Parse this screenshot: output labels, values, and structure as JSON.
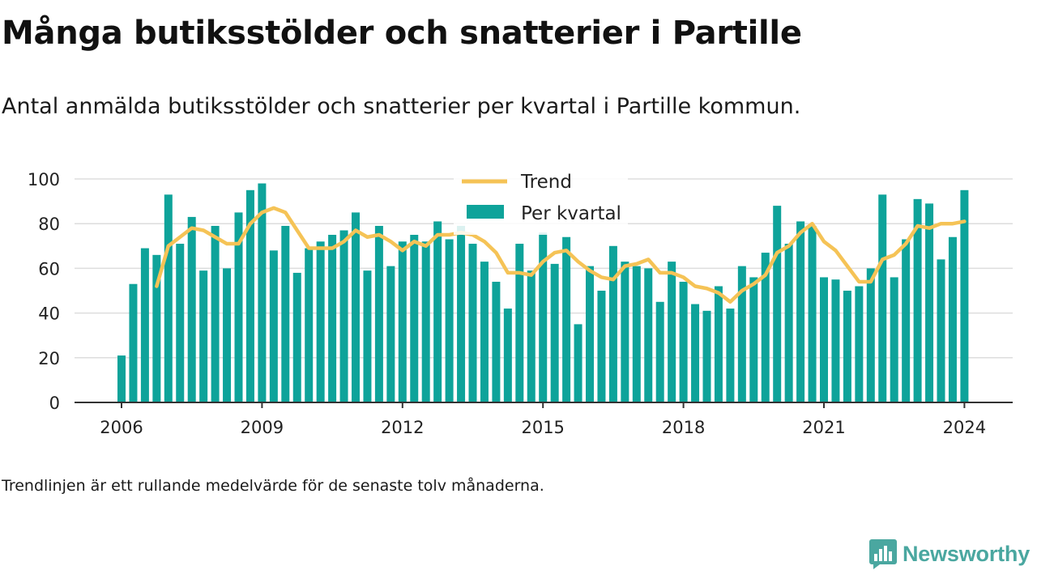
{
  "title": "Många butiksstölder och snatterier i Partille",
  "subtitle": "Antal anmälda butiksstölder och snatterier per kvartal i Partille kommun.",
  "note": "Trendlinjen är ett rullande medelvärde för de senaste tolv månaderna.",
  "brand": {
    "name": "Newsworthy",
    "icon": "newsworthy-logo-icon"
  },
  "colors": {
    "bar": "#0ea39a",
    "trend": "#f5c356",
    "grid": "#dddddd",
    "axis": "#333333",
    "text": "#222222"
  },
  "chart_data": {
    "type": "bar",
    "title": "Många butiksstölder och snatterier i Partille",
    "subtitle": "Antal anmälda butiksstölder och snatterier per kvartal i Partille kommun.",
    "xlabel": "",
    "ylabel": "",
    "ylim": [
      0,
      100
    ],
    "yticks": [
      0,
      20,
      40,
      60,
      80,
      100
    ],
    "xticks": [
      "2006",
      "2009",
      "2012",
      "2015",
      "2018",
      "2021",
      "2024"
    ],
    "grid": true,
    "legend_position": "top-center",
    "categories": [
      "2006 Q1",
      "2006 Q2",
      "2006 Q3",
      "2006 Q4",
      "2007 Q1",
      "2007 Q2",
      "2007 Q3",
      "2007 Q4",
      "2008 Q1",
      "2008 Q2",
      "2008 Q3",
      "2008 Q4",
      "2009 Q1",
      "2009 Q2",
      "2009 Q3",
      "2009 Q4",
      "2010 Q1",
      "2010 Q2",
      "2010 Q3",
      "2010 Q4",
      "2011 Q1",
      "2011 Q2",
      "2011 Q3",
      "2011 Q4",
      "2012 Q1",
      "2012 Q2",
      "2012 Q3",
      "2012 Q4",
      "2013 Q1",
      "2013 Q2",
      "2013 Q3",
      "2013 Q4",
      "2014 Q1",
      "2014 Q2",
      "2014 Q3",
      "2014 Q4",
      "2015 Q1",
      "2015 Q2",
      "2015 Q3",
      "2015 Q4",
      "2016 Q1",
      "2016 Q2",
      "2016 Q3",
      "2016 Q4",
      "2017 Q1",
      "2017 Q2",
      "2017 Q3",
      "2017 Q4",
      "2018 Q1",
      "2018 Q2",
      "2018 Q3",
      "2018 Q4",
      "2019 Q1",
      "2019 Q2",
      "2019 Q3",
      "2019 Q4",
      "2020 Q1",
      "2020 Q2",
      "2020 Q3",
      "2020 Q4",
      "2021 Q1",
      "2021 Q2",
      "2021 Q3",
      "2021 Q4",
      "2022 Q1",
      "2022 Q2",
      "2022 Q3",
      "2022 Q4",
      "2023 Q1",
      "2023 Q2",
      "2023 Q3",
      "2023 Q4",
      "2024 Q1"
    ],
    "series": [
      {
        "name": "Per kvartal",
        "type": "bar",
        "values": [
          21,
          53,
          69,
          66,
          93,
          71,
          83,
          59,
          79,
          60,
          85,
          95,
          98,
          68,
          79,
          58,
          69,
          72,
          75,
          77,
          85,
          59,
          79,
          61,
          72,
          75,
          72,
          81,
          73,
          79,
          71,
          63,
          54,
          42,
          71,
          59,
          76,
          62,
          74,
          35,
          61,
          50,
          70,
          63,
          61,
          60,
          45,
          63,
          54,
          44,
          41,
          52,
          42,
          61,
          56,
          67,
          88,
          71,
          81,
          79,
          56,
          55,
          50,
          52,
          60,
          93,
          56,
          73,
          91,
          89,
          64,
          74,
          95
        ]
      },
      {
        "name": "Trend",
        "type": "line",
        "values": [
          null,
          null,
          null,
          52,
          70,
          74,
          78,
          77,
          74,
          71,
          71,
          80,
          85,
          87,
          85,
          77,
          69,
          69,
          69,
          72,
          77,
          74,
          75,
          72,
          68,
          72,
          70,
          75,
          75,
          76,
          75,
          72,
          67,
          58,
          58,
          57,
          63,
          67,
          68,
          63,
          59,
          56,
          55,
          61,
          62,
          64,
          58,
          58,
          56,
          52,
          51,
          49,
          45,
          50,
          53,
          57,
          67,
          70,
          76,
          80,
          72,
          68,
          61,
          54,
          54,
          64,
          66,
          71,
          79,
          78,
          80,
          80,
          81
        ]
      }
    ]
  }
}
